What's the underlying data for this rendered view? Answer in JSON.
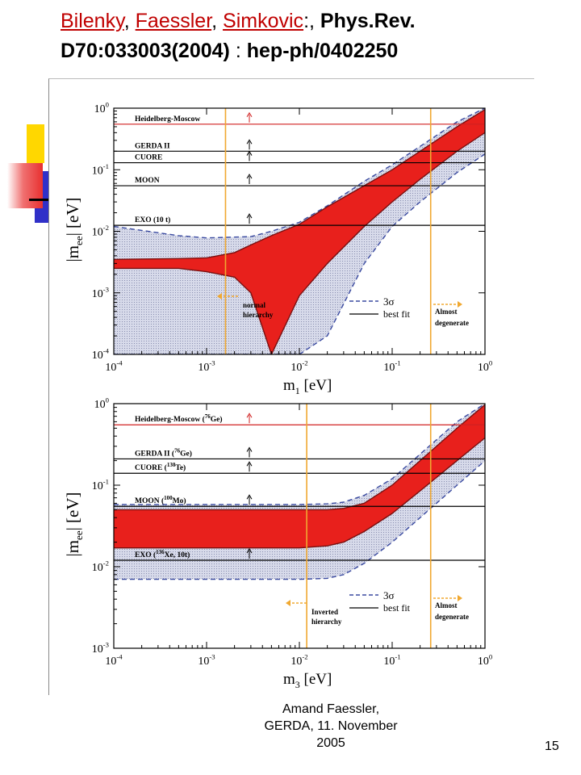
{
  "title": {
    "author1": "Bilenky",
    "sep1": ",",
    "author2": " Faessler",
    "sep2": ",",
    "author3": "Simkovic",
    "after_authors": ":,",
    "journal": "Phys.Rev. D70:033003(2004)",
    "colon": ":",
    "arxiv": "hep-ph/0402250"
  },
  "colors": {
    "link": "#c00000",
    "band_red": "#e8201c",
    "band_shade": "#cfd3e4",
    "line_orange": "#f0a830",
    "dash_blue": "#3a4aa0",
    "deco_yellow": "#ffd700",
    "deco_blue": "#3030c8",
    "deco_red": "#e83030"
  },
  "footer": {
    "line1": "Amand Faessler,",
    "line2": "GERDA, 11. November",
    "line3": "2005"
  },
  "page_number": "15",
  "chart_data": [
    {
      "type": "area",
      "xlabel": "m",
      "xlabel_sub": "1",
      "xlabel_unit": " [eV]",
      "ylabel": "|m",
      "ylabel_sub": "ee",
      "ylabel_unit": "| [eV]",
      "log_x": true,
      "log_y": true,
      "xlim": [
        0.0001,
        1
      ],
      "ylim": [
        0.0001,
        1
      ],
      "x_ticks": [
        "10",
        "10",
        "10",
        "10",
        "10"
      ],
      "x_tick_exps": [
        "-4",
        "-3",
        "-2",
        "-1",
        "0"
      ],
      "y_ticks": [
        "10",
        "10",
        "10",
        "10",
        "10"
      ],
      "y_tick_exps": [
        "-4",
        "-3",
        "-2",
        "-1",
        "0"
      ],
      "horizontal_lines": [
        {
          "label": "Heidelberg-Moscow",
          "y": 0.55,
          "color": "#d02020"
        },
        {
          "label": "GERDA II",
          "y": 0.2
        },
        {
          "label": "CUORE",
          "y": 0.13
        },
        {
          "label": "MOON",
          "y": 0.055
        },
        {
          "label": "EXO (10 t)",
          "y": 0.0125
        }
      ],
      "vertical_lines": [
        0.0016,
        0.26
      ],
      "annotations": {
        "left": "normal hierarchy",
        "right": "Almost degenerate",
        "legend_3sigma": "3σ",
        "legend_best": "best fit"
      },
      "series": [
        {
          "x": [
            0.0001,
            0.0005,
            0.001,
            0.002,
            0.003,
            0.005,
            0.01,
            0.02,
            0.05,
            0.1,
            0.2,
            0.5,
            1.0
          ],
          "lower": [
            0.0025,
            0.0025,
            0.0022,
            0.0018,
            0.001,
            0.0001,
            0.0009,
            0.003,
            0.012,
            0.03,
            0.07,
            0.2,
            0.4
          ],
          "upper": [
            0.0035,
            0.0036,
            0.0037,
            0.0045,
            0.006,
            0.0085,
            0.013,
            0.025,
            0.055,
            0.1,
            0.2,
            0.5,
            0.95
          ]
        },
        {
          "x": [
            0.0001,
            0.0005,
            0.001,
            0.003,
            0.005,
            0.01,
            0.02,
            0.05,
            0.1,
            0.2,
            0.5,
            1.0
          ],
          "lower": [
            0.0001,
            0.0001,
            0.0001,
            0.0001,
            0.0001,
            0.0001,
            0.0002,
            0.003,
            0.012,
            0.03,
            0.09,
            0.18
          ],
          "upper": [
            0.012,
            0.0085,
            0.0078,
            0.0082,
            0.01,
            0.014,
            0.026,
            0.065,
            0.12,
            0.24,
            0.6,
            1.0
          ]
        }
      ]
    },
    {
      "type": "area",
      "xlabel": "m",
      "xlabel_sub": "3",
      "xlabel_unit": " [eV]",
      "ylabel": "|m",
      "ylabel_sub": "ee",
      "ylabel_unit": "| [eV]",
      "log_x": true,
      "log_y": true,
      "xlim": [
        0.0001,
        1
      ],
      "ylim": [
        0.001,
        1
      ],
      "x_ticks": [
        "10",
        "10",
        "10",
        "10",
        "10"
      ],
      "x_tick_exps": [
        "-4",
        "-3",
        "-2",
        "-1",
        "0"
      ],
      "y_ticks": [
        "10",
        "10",
        "10",
        "10"
      ],
      "y_tick_exps": [
        "-3",
        "-2",
        "-1",
        "0"
      ],
      "horizontal_lines": [
        {
          "label": "Heidelberg-Moscow (",
          "sup": "76",
          "label_end": "Ge)",
          "y": 0.55,
          "color": "#d02020"
        },
        {
          "label": "GERDA II  (",
          "sup": "76",
          "label_end": "Ge)",
          "y": 0.21
        },
        {
          "label": "CUORE (",
          "sup": "130",
          "label_end": "Te)",
          "y": 0.14
        },
        {
          "label": "MOON (",
          "sup": "100",
          "label_end": "Mo)",
          "y": 0.055
        },
        {
          "label": "EXO (",
          "sup": "136",
          "label_end": "Xe, 10t)",
          "y": 0.012
        }
      ],
      "vertical_lines": [
        0.012,
        0.26
      ],
      "annotations": {
        "left": "Inverted hierarchy",
        "right": "Almost degenerate",
        "legend_3sigma": "3σ",
        "legend_best": "best fit"
      },
      "series": [
        {
          "x": [
            0.0001,
            0.001,
            0.01,
            0.02,
            0.03,
            0.05,
            0.1,
            0.2,
            0.5,
            1.0
          ],
          "lower": [
            0.017,
            0.017,
            0.017,
            0.018,
            0.02,
            0.027,
            0.045,
            0.085,
            0.2,
            0.38
          ],
          "upper": [
            0.05,
            0.05,
            0.05,
            0.05,
            0.052,
            0.06,
            0.1,
            0.2,
            0.5,
            0.97
          ]
        },
        {
          "x": [
            0.0001,
            0.001,
            0.01,
            0.02,
            0.03,
            0.05,
            0.1,
            0.2,
            0.5,
            1.0
          ],
          "lower": [
            0.007,
            0.007,
            0.007,
            0.0072,
            0.008,
            0.011,
            0.02,
            0.04,
            0.1,
            0.2
          ],
          "upper": [
            0.058,
            0.058,
            0.058,
            0.059,
            0.062,
            0.075,
            0.12,
            0.24,
            0.6,
            1.0
          ]
        }
      ]
    }
  ]
}
